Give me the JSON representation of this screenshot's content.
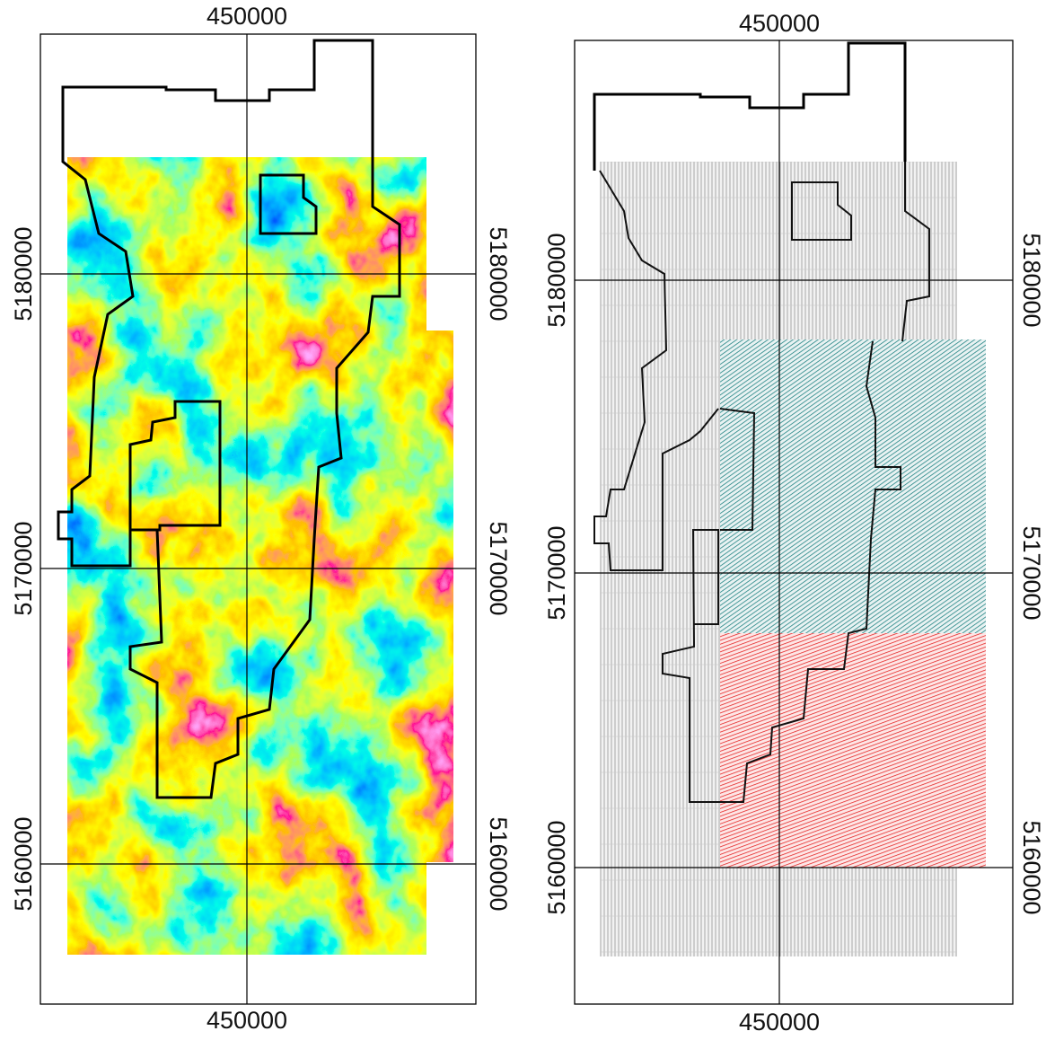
{
  "panels": [
    {
      "top_label": "450000",
      "bottom_label": "450000",
      "left_labels": [
        "5180000",
        "5170000",
        "5160000"
      ],
      "right_labels": [
        "5180000",
        "5170000",
        "5160000"
      ]
    },
    {
      "top_label": "450000",
      "bottom_label": "450000",
      "left_labels": [
        "5180000",
        "5170000",
        "5160000"
      ],
      "right_labels": [
        "5180000",
        "5170000",
        "5160000"
      ]
    }
  ]
}
